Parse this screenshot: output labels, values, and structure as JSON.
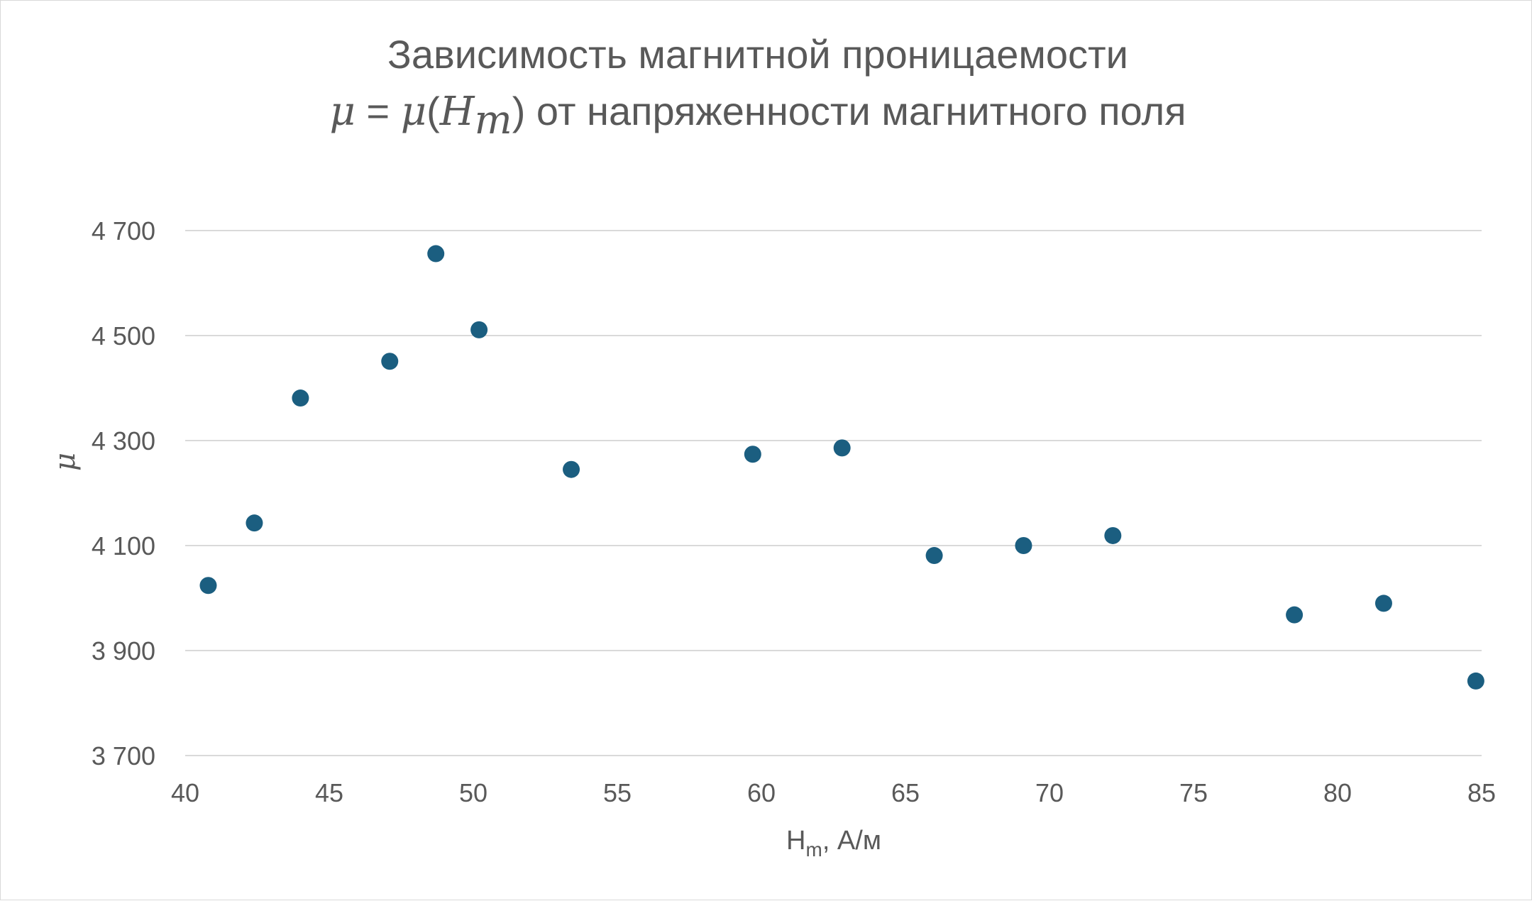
{
  "chart_data": {
    "type": "scatter",
    "title": {
      "line1": "Зависимость магнитной проницаемости",
      "line2_math_lhs": "μ",
      "line2_math_eq": " = ",
      "line2_math_fn": "μ",
      "line2_math_open": "(",
      "line2_math_var": "H",
      "line2_math_sub": "m",
      "line2_math_close": ")",
      "line2_text": " от напряженности магнитного поля"
    },
    "xlabel": {
      "main": "H",
      "sub": "m",
      "rest": ", А/м"
    },
    "ylabel": "μ",
    "xlim": [
      40,
      85
    ],
    "ylim": [
      3700,
      4700
    ],
    "xticks": [
      40,
      45,
      50,
      55,
      60,
      65,
      70,
      75,
      80,
      85
    ],
    "yticks": [
      3700,
      3900,
      4100,
      4300,
      4500,
      4700
    ],
    "ytick_labels": [
      "3 700",
      "3 900",
      "4 100",
      "4 300",
      "4 500",
      "4 700"
    ],
    "grid": true,
    "marker_color": "#1b5e80",
    "series": [
      {
        "points": [
          [
            40.8,
            4024
          ],
          [
            42.4,
            4143
          ],
          [
            44.0,
            4381
          ],
          [
            47.1,
            4451
          ],
          [
            48.7,
            4656
          ],
          [
            50.2,
            4511
          ],
          [
            53.4,
            4245
          ],
          [
            59.7,
            4274
          ],
          [
            62.8,
            4286
          ],
          [
            66.0,
            4081
          ],
          [
            69.1,
            4100
          ],
          [
            72.2,
            4119
          ],
          [
            78.5,
            3968
          ],
          [
            81.6,
            3990
          ],
          [
            84.8,
            3842
          ]
        ]
      }
    ]
  }
}
